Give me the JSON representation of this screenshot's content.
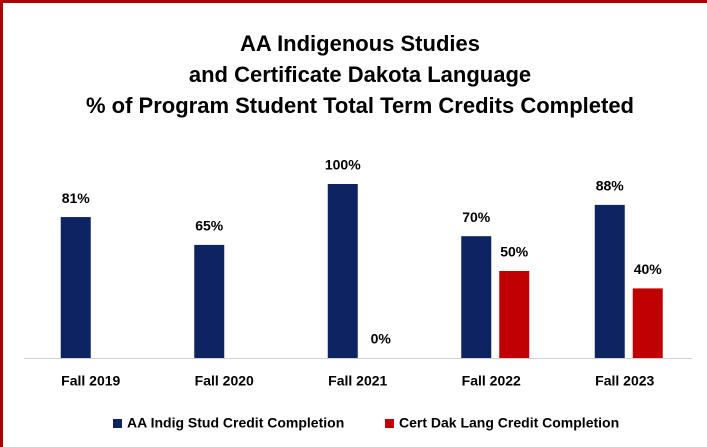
{
  "chart_data": {
    "type": "bar",
    "title": [
      "AA Indigenous Studies",
      "and Certificate Dakota Language",
      "% of Program Student Total Term Credits Completed"
    ],
    "categories": [
      "Fall 2019",
      "Fall 2020",
      "Fall 2021",
      "Fall 2022",
      "Fall 2023"
    ],
    "series": [
      {
        "name": "AA Indig Stud Credit Completion",
        "color": "#0e2361",
        "values": [
          81,
          65,
          100,
          70,
          88
        ],
        "value_labels": [
          "81%",
          "65%",
          "100%",
          "70%",
          "88%"
        ]
      },
      {
        "name": "Cert Dak Lang Credit Completion",
        "color": "#c00000",
        "values": [
          null,
          null,
          0,
          50,
          40
        ],
        "value_labels": [
          null,
          null,
          "0%",
          "50%",
          "40%"
        ]
      }
    ],
    "ylim": [
      0,
      100
    ],
    "legend": "bottom"
  }
}
